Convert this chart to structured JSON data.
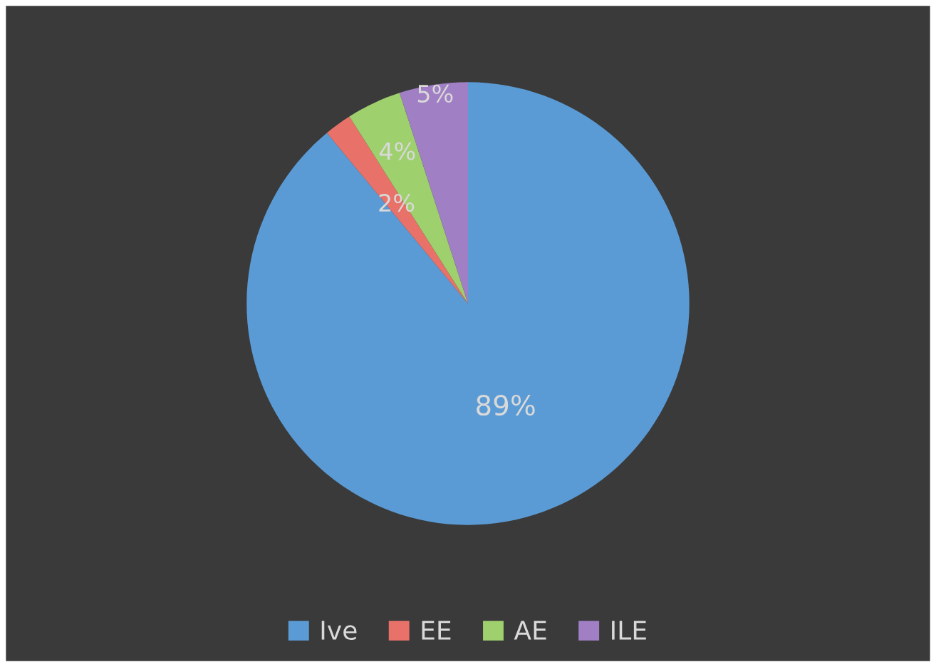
{
  "chart_data": {
    "type": "pie",
    "categories": [
      "Ive",
      "EE",
      "AE",
      "ILE"
    ],
    "values": [
      89,
      2,
      4,
      5
    ],
    "colors": [
      "#5b9bd5",
      "#e8726a",
      "#9fd06e",
      "#a07fc4"
    ],
    "value_labels": [
      "89%",
      "2%",
      "4%",
      "5%"
    ],
    "legend": "bottom"
  }
}
